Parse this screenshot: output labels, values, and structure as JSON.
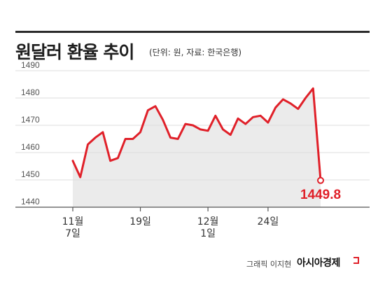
{
  "header": {
    "title": "원달러 환율 추이",
    "subtitle": "(단위: 원, 자료: 한국은행)"
  },
  "footer": {
    "credit": "그래픽 이지현",
    "brand": "아시아경제"
  },
  "colors": {
    "line": "#e02029",
    "area": "#ebebeb",
    "grid": "#dedede",
    "rule": "#2b2b2b"
  },
  "chart_data": {
    "type": "area",
    "title": "원달러 환율 추이",
    "ylim": [
      1440,
      1490
    ],
    "yticks": [
      1440,
      1450,
      1460,
      1470,
      1480,
      1490
    ],
    "grid": true,
    "x_tick_labels": [
      {
        "index": 0,
        "lines": [
          "11월",
          "7일"
        ]
      },
      {
        "index": 9,
        "lines": [
          "19일"
        ]
      },
      {
        "index": 18,
        "lines": [
          "12월",
          "1일"
        ]
      },
      {
        "index": 26,
        "lines": [
          "24일"
        ]
      }
    ],
    "series": [
      {
        "values": [
          1457,
          1451,
          1463,
          1465.5,
          1467.5,
          1457,
          1458,
          1465,
          1465,
          1467.5,
          1475.5,
          1477,
          1472,
          1465.5,
          1465,
          1470.5,
          1470,
          1468.5,
          1468,
          1473.5,
          1468.5,
          1466.5,
          1472.5,
          1470.5,
          1473,
          1473.5,
          1471,
          1476.5,
          1479.5,
          1478,
          1476,
          1480,
          1483.5,
          1449.8
        ]
      }
    ],
    "end_label": "1449.8"
  }
}
